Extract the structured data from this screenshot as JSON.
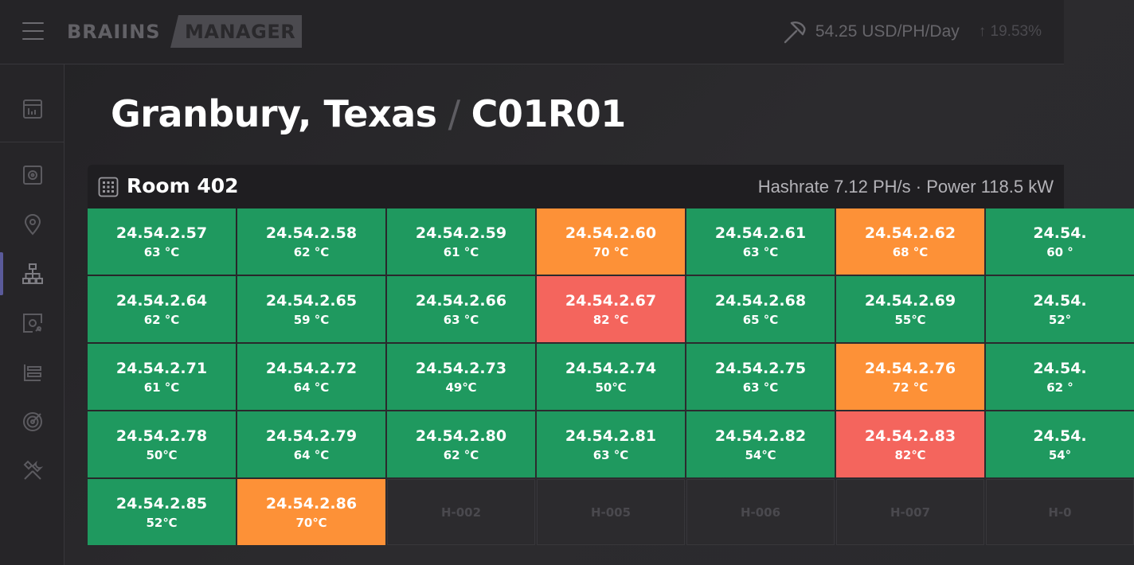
{
  "header": {
    "logo_text": "BRAIINS",
    "logo_badge": "MANAGER",
    "price": "54.25 USD/PH/Day",
    "change": "↑ 19.53%"
  },
  "sidebar": {
    "items": [
      {
        "icon": "dashboard-icon"
      },
      {
        "icon": "miner-icon"
      },
      {
        "icon": "location-pin-icon"
      },
      {
        "icon": "hierarchy-icon",
        "active": true
      },
      {
        "icon": "miner-settings-icon"
      },
      {
        "icon": "list-icon"
      },
      {
        "icon": "target-icon"
      },
      {
        "icon": "tools-icon"
      }
    ]
  },
  "page": {
    "location": "Granbury, Texas",
    "separator": "/",
    "container": "C01R01"
  },
  "room": {
    "title": "Room 402",
    "stats": "Hashrate 7.12 PH/s · Power 118.5 kW"
  },
  "colors": {
    "green": "#1f995f",
    "orange": "#fd9137",
    "red": "#f4655d"
  },
  "grid": {
    "rows": [
      [
        {
          "ip": "24.54.2.57",
          "temp": "63 °C",
          "status": "green"
        },
        {
          "ip": "24.54.2.58",
          "temp": "62 °C",
          "status": "green"
        },
        {
          "ip": "24.54.2.59",
          "temp": "61 °C",
          "status": "green"
        },
        {
          "ip": "24.54.2.60",
          "temp": "70 °C",
          "status": "orange"
        },
        {
          "ip": "24.54.2.61",
          "temp": "63 °C",
          "status": "green"
        },
        {
          "ip": "24.54.2.62",
          "temp": "68 °C",
          "status": "orange"
        },
        {
          "ip": "24.54.",
          "temp": "60 °",
          "status": "green"
        }
      ],
      [
        {
          "ip": "24.54.2.64",
          "temp": "62 °C",
          "status": "green"
        },
        {
          "ip": "24.54.2.65",
          "temp": "59 °C",
          "status": "green"
        },
        {
          "ip": "24.54.2.66",
          "temp": "63 °C",
          "status": "green"
        },
        {
          "ip": "24.54.2.67",
          "temp": "82 °C",
          "status": "red"
        },
        {
          "ip": "24.54.2.68",
          "temp": "65 °C",
          "status": "green"
        },
        {
          "ip": "24.54.2.69",
          "temp": "55℃",
          "status": "green"
        },
        {
          "ip": "24.54.",
          "temp": "52°",
          "status": "green"
        }
      ],
      [
        {
          "ip": "24.54.2.71",
          "temp": "61 °C",
          "status": "green"
        },
        {
          "ip": "24.54.2.72",
          "temp": "64 °C",
          "status": "green"
        },
        {
          "ip": "24.54.2.73",
          "temp": "49℃",
          "status": "green"
        },
        {
          "ip": "24.54.2.74",
          "temp": "50℃",
          "status": "green"
        },
        {
          "ip": "24.54.2.75",
          "temp": "63 °C",
          "status": "green"
        },
        {
          "ip": "24.54.2.76",
          "temp": "72 °C",
          "status": "orange"
        },
        {
          "ip": "24.54.",
          "temp": "62 °",
          "status": "green"
        }
      ],
      [
        {
          "ip": "24.54.2.78",
          "temp": "50℃",
          "status": "green"
        },
        {
          "ip": "24.54.2.79",
          "temp": "64 °C",
          "status": "green"
        },
        {
          "ip": "24.54.2.80",
          "temp": "62 °C",
          "status": "green"
        },
        {
          "ip": "24.54.2.81",
          "temp": "63 °C",
          "status": "green"
        },
        {
          "ip": "24.54.2.82",
          "temp": "54℃",
          "status": "green"
        },
        {
          "ip": "24.54.2.83",
          "temp": "82℃",
          "status": "red"
        },
        {
          "ip": "24.54.",
          "temp": "54°",
          "status": "green"
        }
      ],
      [
        {
          "ip": "24.54.2.85",
          "temp": "52℃",
          "status": "green"
        },
        {
          "ip": "24.54.2.86",
          "temp": "70℃",
          "status": "orange"
        },
        {
          "label": "H-002",
          "status": "empty"
        },
        {
          "label": "H-005",
          "status": "empty"
        },
        {
          "label": "H-006",
          "status": "empty"
        },
        {
          "label": "H-007",
          "status": "empty"
        },
        {
          "label": "H-0",
          "status": "empty"
        }
      ]
    ]
  }
}
